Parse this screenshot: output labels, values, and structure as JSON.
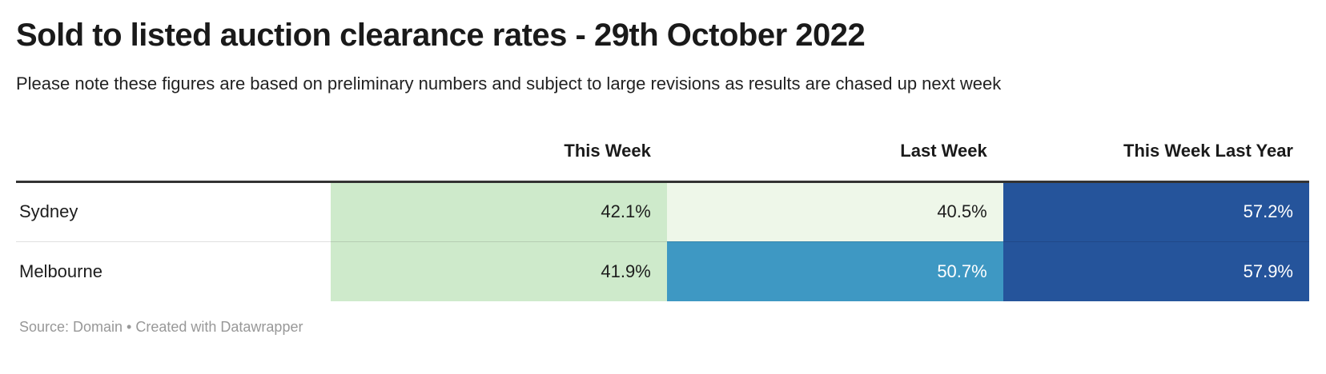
{
  "header": {
    "title": "Sold to listed auction clearance rates - 29th October 2022",
    "subtitle": "Please note these figures are based on preliminary numbers and subject to large revisions as results are chased up next week"
  },
  "table": {
    "columns": [
      "",
      "This Week",
      "Last Week",
      "This Week Last Year"
    ],
    "rows": [
      {
        "label": "Sydney",
        "cells": [
          {
            "value": "42.1%",
            "bg": "#ceeacb",
            "text": "#1d1d1d"
          },
          {
            "value": "40.5%",
            "bg": "#eef7e9",
            "text": "#1d1d1d"
          },
          {
            "value": "57.2%",
            "bg": "#25549b",
            "text": "#ffffff"
          }
        ]
      },
      {
        "label": "Melbourne",
        "cells": [
          {
            "value": "41.9%",
            "bg": "#ceeacb",
            "text": "#1d1d1d"
          },
          {
            "value": "50.7%",
            "bg": "#3e98c3",
            "text": "#ffffff"
          },
          {
            "value": "57.9%",
            "bg": "#25549b",
            "text": "#ffffff"
          }
        ]
      }
    ]
  },
  "chart_data": {
    "type": "table",
    "title": "Sold to listed auction clearance rates - 29th October 2022",
    "subtitle": "Please note these figures are based on preliminary numbers and subject to large revisions as results are chased up next week",
    "columns": [
      "This Week",
      "Last Week",
      "This Week Last Year"
    ],
    "row_labels": [
      "Sydney",
      "Melbourne"
    ],
    "values": [
      [
        42.1,
        40.5,
        57.2
      ],
      [
        41.9,
        50.7,
        57.9
      ]
    ],
    "unit": "%",
    "heatmap_colors": {
      "low_green": "#ceeacb",
      "pale_green": "#eef7e9",
      "mid_blue": "#3e98c3",
      "dark_blue": "#25549b"
    },
    "source": "Domain"
  },
  "footer": {
    "text": "Source: Domain • Created with Datawrapper"
  }
}
